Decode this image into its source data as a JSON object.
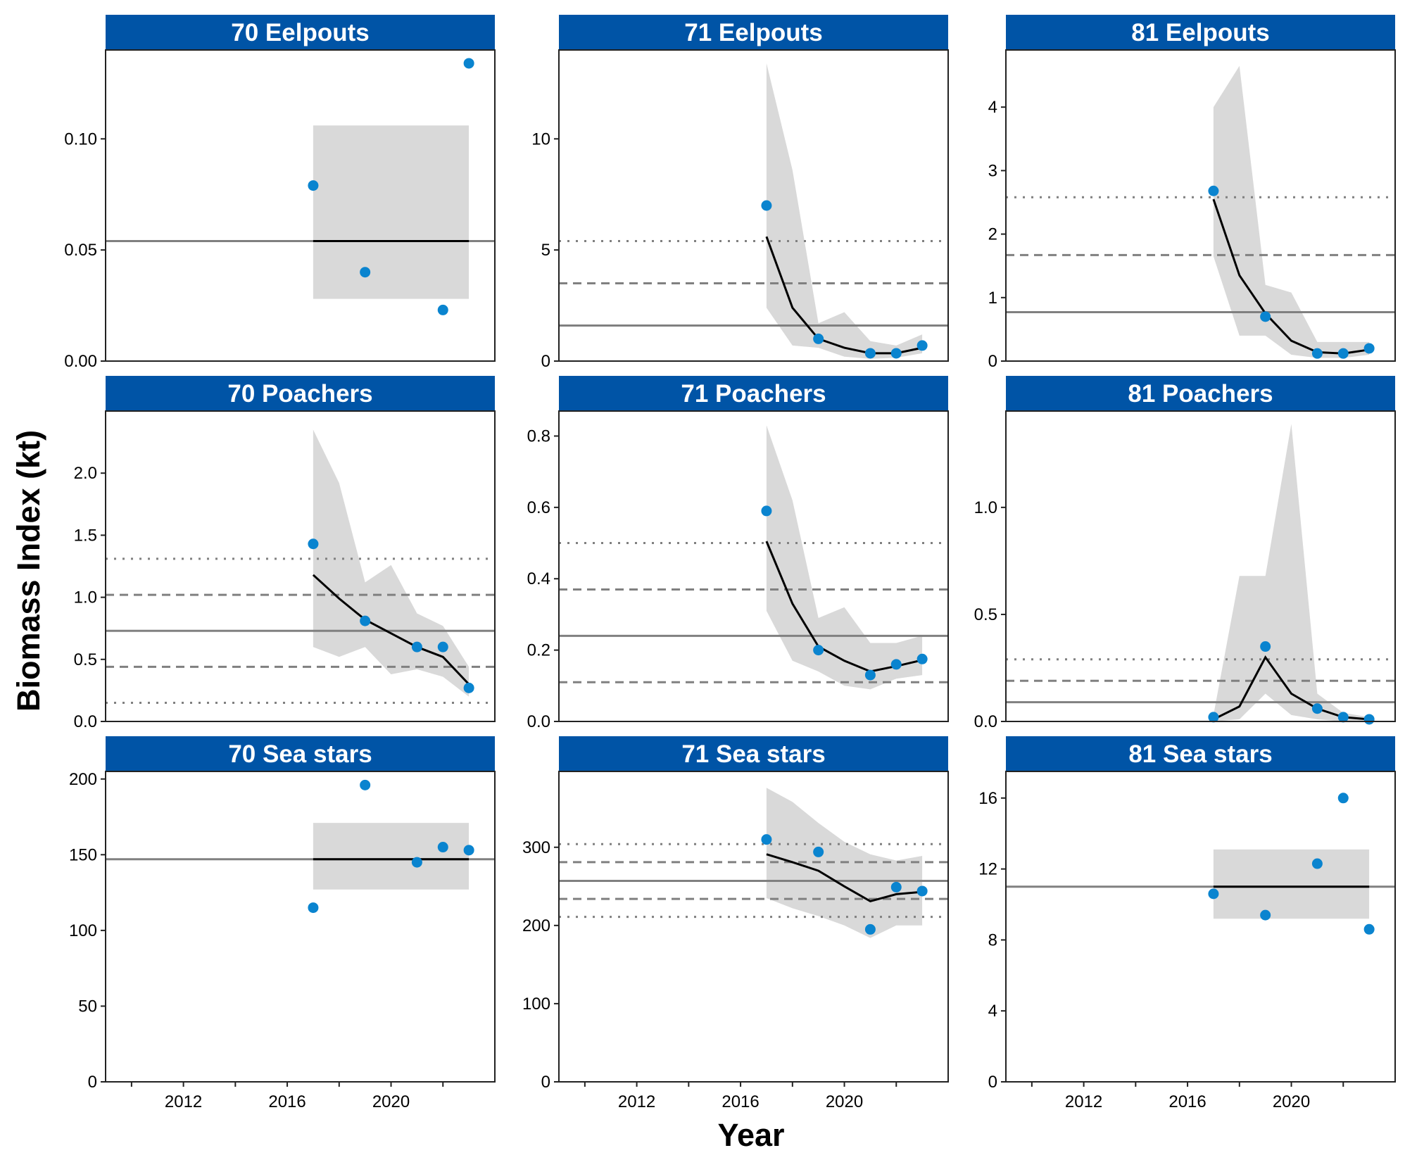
{
  "axis_labels": {
    "y": "Biomass Index (kt)",
    "x": "Year"
  },
  "colors": {
    "strip": "#0054A6",
    "strip_text": "#FFFFFF",
    "point": "#0A84CF",
    "ribbon": "#D9D9D9",
    "ref_line": "#808080",
    "trend": "#000000"
  },
  "chart_data": {
    "type": "line",
    "facets": "3x3",
    "x_axis": {
      "ticks": [
        2012,
        2016,
        2020
      ],
      "range": [
        2009,
        2024
      ]
    },
    "panels": [
      {
        "title": "70 Eelpouts",
        "ylim": [
          0,
          0.14
        ],
        "yticks": [
          0,
          0.05,
          0.1
        ],
        "ytick_labels": [
          "0.00",
          "0.05",
          "0.10"
        ],
        "points": {
          "x": [
            2017,
            2019,
            2022,
            2023
          ],
          "y": [
            0.079,
            0.04,
            0.023,
            0.134
          ]
        },
        "trend": {
          "x": [
            2017,
            2023
          ],
          "y": [
            0.054,
            0.054
          ]
        },
        "ribbon": {
          "x": [
            2017,
            2023
          ],
          "lower": [
            0.028,
            0.028
          ],
          "upper": [
            0.106,
            0.106
          ]
        },
        "mean": 0.054,
        "sd1": null,
        "sd2": null
      },
      {
        "title": "71 Eelpouts",
        "ylim": [
          0,
          14
        ],
        "yticks": [
          0,
          5,
          10
        ],
        "ytick_labels": [
          "0",
          "5",
          "10"
        ],
        "points": {
          "x": [
            2017,
            2019,
            2021,
            2022,
            2023
          ],
          "y": [
            7.0,
            1.0,
            0.35,
            0.35,
            0.7
          ]
        },
        "trend": {
          "x": [
            2017,
            2018,
            2019,
            2020,
            2021,
            2022,
            2023
          ],
          "y": [
            5.6,
            2.4,
            1.0,
            0.6,
            0.35,
            0.35,
            0.6
          ]
        },
        "ribbon": {
          "x": [
            2017,
            2018,
            2019,
            2020,
            2021,
            2022,
            2023
          ],
          "lower": [
            2.4,
            0.7,
            0.6,
            0.2,
            0.1,
            0.15,
            0.35
          ],
          "upper": [
            13.4,
            8.6,
            1.7,
            2.2,
            0.9,
            0.7,
            1.2
          ]
        },
        "mean": 1.6,
        "sd1": [
          3.5
        ],
        "sd2": [
          5.4
        ]
      },
      {
        "title": "81 Eelpouts",
        "ylim": [
          0,
          4.9
        ],
        "yticks": [
          0,
          1,
          2,
          3,
          4
        ],
        "ytick_labels": [
          "0",
          "1",
          "2",
          "3",
          "4"
        ],
        "points": {
          "x": [
            2017,
            2019,
            2021,
            2022,
            2023
          ],
          "y": [
            2.68,
            0.7,
            0.12,
            0.12,
            0.2
          ]
        },
        "trend": {
          "x": [
            2017,
            2018,
            2019,
            2020,
            2021,
            2022,
            2023
          ],
          "y": [
            2.55,
            1.35,
            0.75,
            0.32,
            0.14,
            0.12,
            0.18
          ]
        },
        "ribbon": {
          "x": [
            2017,
            2018,
            2019,
            2020,
            2021,
            2022,
            2023
          ],
          "lower": [
            1.65,
            0.4,
            0.4,
            0.1,
            0.05,
            0.05,
            0.1
          ],
          "upper": [
            4.0,
            4.65,
            1.2,
            1.08,
            0.3,
            0.3,
            0.3
          ]
        },
        "mean": 0.77,
        "sd1": [
          1.67
        ],
        "sd2": [
          2.58
        ]
      },
      {
        "title": "70 Poachers",
        "ylim": [
          0,
          2.5
        ],
        "yticks": [
          0,
          0.5,
          1.0,
          1.5,
          2.0
        ],
        "ytick_labels": [
          "0.0",
          "0.5",
          "1.0",
          "1.5",
          "2.0"
        ],
        "points": {
          "x": [
            2017,
            2019,
            2021,
            2022,
            2023
          ],
          "y": [
            1.43,
            0.81,
            0.6,
            0.6,
            0.27
          ]
        },
        "trend": {
          "x": [
            2017,
            2018,
            2019,
            2020,
            2021,
            2022,
            2023
          ],
          "y": [
            1.18,
            0.99,
            0.82,
            0.71,
            0.6,
            0.52,
            0.3
          ]
        },
        "ribbon": {
          "x": [
            2017,
            2018,
            2019,
            2020,
            2021,
            2022,
            2023
          ],
          "lower": [
            0.6,
            0.52,
            0.6,
            0.38,
            0.42,
            0.36,
            0.2
          ],
          "upper": [
            2.35,
            1.92,
            1.12,
            1.26,
            0.87,
            0.77,
            0.44
          ]
        },
        "mean": 0.73,
        "sd1": [
          0.44,
          1.02
        ],
        "sd2": [
          0.15,
          1.31
        ]
      },
      {
        "title": "71 Poachers",
        "ylim": [
          0,
          0.87
        ],
        "yticks": [
          0,
          0.2,
          0.4,
          0.6,
          0.8
        ],
        "ytick_labels": [
          "0.0",
          "0.2",
          "0.4",
          "0.6",
          "0.8"
        ],
        "points": {
          "x": [
            2017,
            2019,
            2021,
            2022,
            2023
          ],
          "y": [
            0.59,
            0.2,
            0.13,
            0.16,
            0.175
          ]
        },
        "trend": {
          "x": [
            2017,
            2018,
            2019,
            2020,
            2021,
            2022,
            2023
          ],
          "y": [
            0.505,
            0.33,
            0.21,
            0.17,
            0.14,
            0.155,
            0.172
          ]
        },
        "ribbon": {
          "x": [
            2017,
            2018,
            2019,
            2020,
            2021,
            2022,
            2023
          ],
          "lower": [
            0.31,
            0.17,
            0.14,
            0.1,
            0.09,
            0.12,
            0.13
          ],
          "upper": [
            0.83,
            0.62,
            0.29,
            0.32,
            0.22,
            0.22,
            0.24
          ]
        },
        "mean": 0.24,
        "sd1": [
          0.11,
          0.37
        ],
        "sd2": [
          0.5
        ]
      },
      {
        "title": "81 Poachers",
        "ylim": [
          0,
          1.45
        ],
        "yticks": [
          0,
          0.5,
          1.0
        ],
        "ytick_labels": [
          "0.0",
          "0.5",
          "1.0"
        ],
        "points": {
          "x": [
            2017,
            2019,
            2021,
            2022,
            2023
          ],
          "y": [
            0.02,
            0.35,
            0.06,
            0.02,
            0.01
          ]
        },
        "trend": {
          "x": [
            2017,
            2018,
            2019,
            2020,
            2021,
            2022,
            2023
          ],
          "y": [
            0.01,
            0.07,
            0.3,
            0.13,
            0.06,
            0.02,
            0.01
          ]
        },
        "ribbon": {
          "x": [
            2017,
            2018,
            2019,
            2020,
            2021,
            2022,
            2023
          ],
          "lower": [
            0.0,
            0.01,
            0.13,
            0.03,
            0.01,
            0.0,
            0.0
          ],
          "upper": [
            0.03,
            0.68,
            0.68,
            1.39,
            0.13,
            0.04,
            0.02
          ]
        },
        "mean": 0.09,
        "sd1": [
          0.19
        ],
        "sd2": [
          0.29
        ]
      },
      {
        "title": "70 Sea stars",
        "ylim": [
          0,
          205
        ],
        "yticks": [
          0,
          50,
          100,
          150,
          200
        ],
        "ytick_labels": [
          "0",
          "50",
          "100",
          "150",
          "200"
        ],
        "points": {
          "x": [
            2017,
            2019,
            2021,
            2022,
            2023
          ],
          "y": [
            115,
            196,
            145,
            155,
            153
          ]
        },
        "trend": {
          "x": [
            2017,
            2023
          ],
          "y": [
            147,
            147
          ]
        },
        "ribbon": {
          "x": [
            2017,
            2023
          ],
          "lower": [
            127,
            127
          ],
          "upper": [
            171,
            171
          ]
        },
        "mean": 147,
        "sd1": null,
        "sd2": null
      },
      {
        "title": "71 Sea stars",
        "ylim": [
          0,
          397
        ],
        "yticks": [
          0,
          100,
          200,
          300
        ],
        "ytick_labels": [
          "0",
          "100",
          "200",
          "300"
        ],
        "points": {
          "x": [
            2017,
            2019,
            2021,
            2022,
            2023
          ],
          "y": [
            310,
            294,
            195,
            249,
            244
          ]
        },
        "trend": {
          "x": [
            2017,
            2018,
            2019,
            2020,
            2021,
            2022,
            2023
          ],
          "y": [
            291,
            281,
            270,
            250,
            231,
            240,
            243
          ]
        },
        "ribbon": {
          "x": [
            2017,
            2018,
            2019,
            2020,
            2021,
            2022,
            2023
          ],
          "lower": [
            235,
            222,
            212,
            200,
            184,
            200,
            200
          ],
          "upper": [
            376,
            358,
            331,
            307,
            291,
            283,
            289
          ]
        },
        "mean": 257,
        "sd1": [
          234,
          281
        ],
        "sd2": [
          211,
          304
        ]
      },
      {
        "title": "81 Sea stars",
        "ylim": [
          0,
          17.5
        ],
        "yticks": [
          0,
          4,
          8,
          12,
          16
        ],
        "ytick_labels": [
          "0",
          "4",
          "8",
          "12",
          "16"
        ],
        "points": {
          "x": [
            2017,
            2019,
            2021,
            2022,
            2023
          ],
          "y": [
            10.6,
            9.4,
            12.3,
            16.0,
            8.6
          ]
        },
        "trend": {
          "x": [
            2017,
            2023
          ],
          "y": [
            11.0,
            11.0
          ]
        },
        "ribbon": {
          "x": [
            2017,
            2023
          ],
          "lower": [
            9.2,
            9.2
          ],
          "upper": [
            13.1,
            13.1
          ]
        },
        "mean": 11.0,
        "sd1": null,
        "sd2": null
      }
    ]
  }
}
